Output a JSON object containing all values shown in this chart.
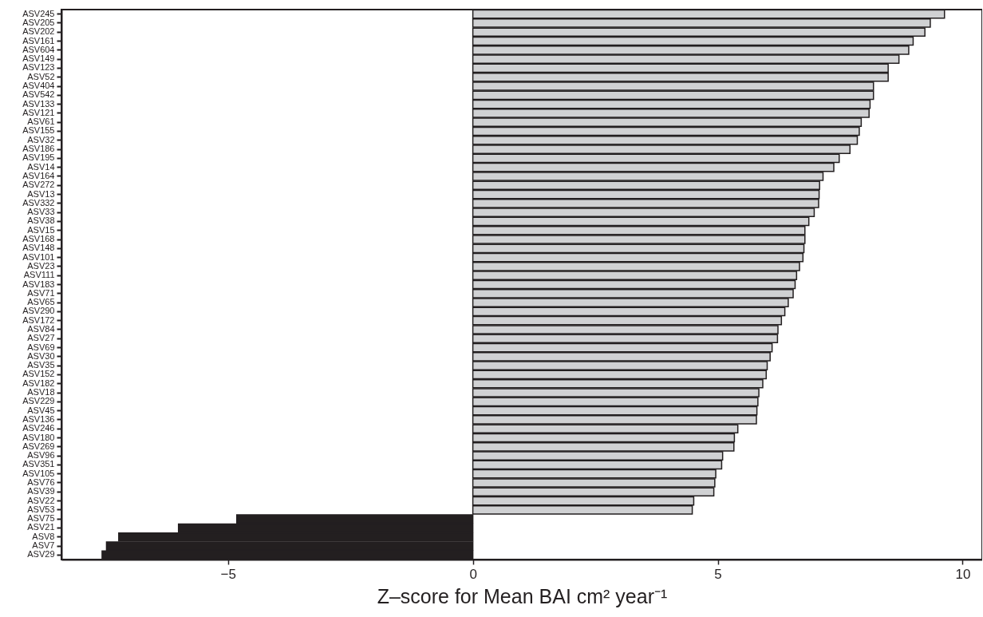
{
  "chart_data": {
    "type": "bar",
    "orientation": "horizontal",
    "xlabel": "Z–score for Mean BAI cm² year⁻¹",
    "categories": [
      "ASV245",
      "ASV205",
      "ASV202",
      "ASV161",
      "ASV604",
      "ASV149",
      "ASV123",
      "ASV52",
      "ASV404",
      "ASV542",
      "ASV133",
      "ASV121",
      "ASV61",
      "ASV155",
      "ASV32",
      "ASV186",
      "ASV195",
      "ASV14",
      "ASV164",
      "ASV272",
      "ASV13",
      "ASV332",
      "ASV33",
      "ASV38",
      "ASV15",
      "ASV168",
      "ASV148",
      "ASV101",
      "ASV23",
      "ASV111",
      "ASV183",
      "ASV71",
      "ASV65",
      "ASV290",
      "ASV172",
      "ASV84",
      "ASV27",
      "ASV69",
      "ASV30",
      "ASV35",
      "ASV152",
      "ASV182",
      "ASV18",
      "ASV229",
      "ASV45",
      "ASV136",
      "ASV246",
      "ASV180",
      "ASV269",
      "ASV96",
      "ASV351",
      "ASV105",
      "ASV76",
      "ASV39",
      "ASV22",
      "ASV53",
      "ASV75",
      "ASV21",
      "ASV8",
      "ASV7",
      "ASV29"
    ],
    "values": [
      9.63,
      9.34,
      9.23,
      8.99,
      8.9,
      8.7,
      8.48,
      8.48,
      8.18,
      8.18,
      8.11,
      8.09,
      7.93,
      7.89,
      7.85,
      7.7,
      7.48,
      7.37,
      7.15,
      7.08,
      7.07,
      7.06,
      6.97,
      6.86,
      6.78,
      6.78,
      6.76,
      6.74,
      6.67,
      6.61,
      6.58,
      6.54,
      6.44,
      6.37,
      6.3,
      6.23,
      6.22,
      6.11,
      6.07,
      6.01,
      5.99,
      5.92,
      5.84,
      5.82,
      5.8,
      5.79,
      5.41,
      5.34,
      5.33,
      5.1,
      5.08,
      4.96,
      4.94,
      4.92,
      4.51,
      4.48,
      -4.82,
      -6.01,
      -7.23,
      -7.48,
      -7.57
    ],
    "colors": [
      "#d0d1d3",
      "#d0d1d3",
      "#d0d1d3",
      "#d0d1d3",
      "#d0d1d3",
      "#d0d1d3",
      "#d0d1d3",
      "#d0d1d3",
      "#d0d1d3",
      "#d0d1d3",
      "#d0d1d3",
      "#d0d1d3",
      "#d0d1d3",
      "#d0d1d3",
      "#d0d1d3",
      "#d0d1d3",
      "#d0d1d3",
      "#d0d1d3",
      "#d0d1d3",
      "#d0d1d3",
      "#d0d1d3",
      "#d0d1d3",
      "#d0d1d3",
      "#d0d1d3",
      "#d0d1d3",
      "#d0d1d3",
      "#d0d1d3",
      "#d0d1d3",
      "#d0d1d3",
      "#d0d1d3",
      "#d0d1d3",
      "#d0d1d3",
      "#d0d1d3",
      "#d0d1d3",
      "#d0d1d3",
      "#d0d1d3",
      "#d0d1d3",
      "#d0d1d3",
      "#d0d1d3",
      "#d0d1d3",
      "#d0d1d3",
      "#d0d1d3",
      "#d0d1d3",
      "#d0d1d3",
      "#d0d1d3",
      "#d0d1d3",
      "#d0d1d3",
      "#d0d1d3",
      "#d0d1d3",
      "#d0d1d3",
      "#d0d1d3",
      "#d0d1d3",
      "#d0d1d3",
      "#d0d1d3",
      "#d0d1d3",
      "#d0d1d3",
      "#231f20",
      "#231f20",
      "#231f20",
      "#231f20",
      "#231f20"
    ],
    "xlim": [
      -8.4,
      10.4
    ],
    "xticks": [
      {
        "value": -5,
        "label": "−5"
      },
      0,
      5,
      10
    ]
  }
}
